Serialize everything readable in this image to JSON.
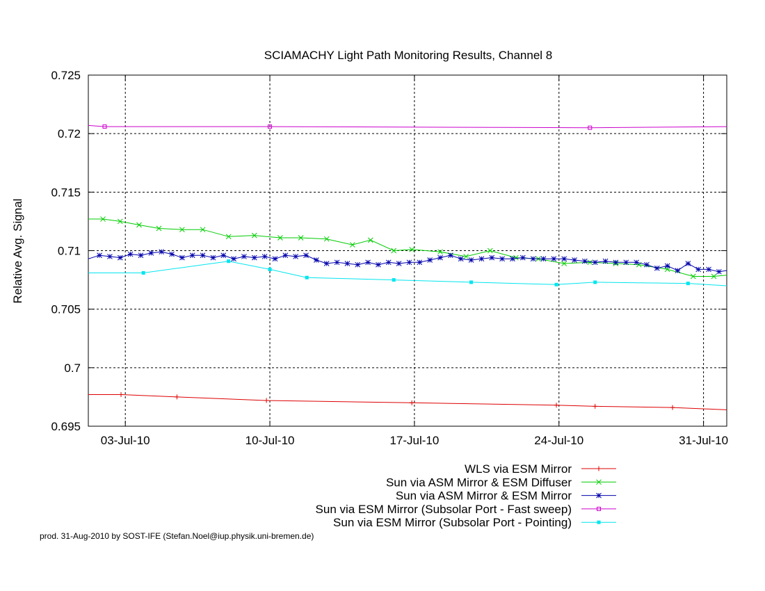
{
  "chart_data": {
    "type": "line",
    "title": "SCIAMACHY Light Path Monitoring Results, Channel 8",
    "xlabel": "",
    "ylabel": "Relative Avg. Signal",
    "x_unit": "date (2010)",
    "xlim": [
      "2010-07-01T05:00",
      "2010-08-01T03:00"
    ],
    "ylim": [
      0.695,
      0.725
    ],
    "yticks": [
      0.695,
      0.7,
      0.705,
      0.71,
      0.715,
      0.72,
      0.725
    ],
    "ytick_labels": [
      "0.695",
      "0.7",
      "0.705",
      "0.71",
      "0.715",
      "0.72",
      "0.725"
    ],
    "xticks": [
      "2010-07-03",
      "2010-07-10",
      "2010-07-17",
      "2010-07-24",
      "2010-07-31"
    ],
    "xtick_labels": [
      "03-Jul-10",
      "10-Jul-10",
      "17-Jul-10",
      "24-Jul-10",
      "31-Jul-10"
    ],
    "grid": true,
    "legend_position": "below plot, right-aligned",
    "series": [
      {
        "name": "WLS via ESM Mirror",
        "color": "#dd0000",
        "marker": "plus",
        "points": [
          [
            "2010-07-01T05:00",
            0.6977
          ],
          [
            "2010-07-02T19:00",
            0.6977
          ],
          [
            "2010-07-05T12:00",
            0.6975
          ],
          [
            "2010-07-09T20:00",
            0.6972
          ],
          [
            "2010-07-16T21:00",
            0.697
          ],
          [
            "2010-07-23T21:00",
            0.6968
          ],
          [
            "2010-07-25T18:00",
            0.6967
          ],
          [
            "2010-07-29T12:00",
            0.6966
          ],
          [
            "2010-08-01T03:00",
            0.6964
          ]
        ]
      },
      {
        "name": "Sun via ASM Mirror & ESM Diffuser",
        "color": "#00cc00",
        "marker": "x",
        "points": [
          [
            "2010-07-01T05:00",
            0.7127
          ],
          [
            "2010-07-01T22:00",
            0.7127
          ],
          [
            "2010-07-02T18:00",
            0.7125
          ],
          [
            "2010-07-03T16:00",
            0.7122
          ],
          [
            "2010-07-04T15:00",
            0.7119
          ],
          [
            "2010-07-05T18:00",
            0.7118
          ],
          [
            "2010-07-06T18:00",
            0.7118
          ],
          [
            "2010-07-08T00:00",
            0.7112
          ],
          [
            "2010-07-09T06:00",
            0.7113
          ],
          [
            "2010-07-10T12:00",
            0.7111
          ],
          [
            "2010-07-11T12:00",
            0.7111
          ],
          [
            "2010-07-12T18:00",
            0.711
          ],
          [
            "2010-07-14T00:00",
            0.7105
          ],
          [
            "2010-07-14T21:00",
            0.7109
          ],
          [
            "2010-07-16T00:00",
            0.71
          ],
          [
            "2010-07-16T21:00",
            0.7101
          ],
          [
            "2010-07-18T06:00",
            0.7099
          ],
          [
            "2010-07-19T12:00",
            0.7095
          ],
          [
            "2010-07-20T16:00",
            0.71
          ],
          [
            "2010-07-21T22:00",
            0.7094
          ],
          [
            "2010-07-23T00:00",
            0.7093
          ],
          [
            "2010-07-24T06:00",
            0.7089
          ],
          [
            "2010-07-25T12:00",
            0.709
          ],
          [
            "2010-07-26T18:00",
            0.7089
          ],
          [
            "2010-07-27T21:00",
            0.7088
          ],
          [
            "2010-07-29T06:00",
            0.7084
          ],
          [
            "2010-07-30T12:00",
            0.7078
          ],
          [
            "2010-07-31T12:00",
            0.7078
          ],
          [
            "2010-08-01T03:00",
            0.7079
          ]
        ]
      },
      {
        "name": "Sun via ASM Mirror & ESM Mirror",
        "color": "#0000aa",
        "marker": "star",
        "points": [
          [
            "2010-07-01T05:00",
            0.7093
          ],
          [
            "2010-07-01T18:00",
            0.7096
          ],
          [
            "2010-07-02T06:00",
            0.7095
          ],
          [
            "2010-07-02T18:00",
            0.7094
          ],
          [
            "2010-07-03T06:00",
            0.7097
          ],
          [
            "2010-07-03T18:00",
            0.7096
          ],
          [
            "2010-07-04T06:00",
            0.7098
          ],
          [
            "2010-07-04T18:00",
            0.7099
          ],
          [
            "2010-07-05T06:00",
            0.7097
          ],
          [
            "2010-07-05T18:00",
            0.7094
          ],
          [
            "2010-07-06T06:00",
            0.7096
          ],
          [
            "2010-07-06T18:00",
            0.7096
          ],
          [
            "2010-07-07T06:00",
            0.7094
          ],
          [
            "2010-07-07T18:00",
            0.7096
          ],
          [
            "2010-07-08T06:00",
            0.7093
          ],
          [
            "2010-07-08T18:00",
            0.7095
          ],
          [
            "2010-07-09T06:00",
            0.7094
          ],
          [
            "2010-07-09T18:00",
            0.7095
          ],
          [
            "2010-07-10T06:00",
            0.7093
          ],
          [
            "2010-07-10T18:00",
            0.7096
          ],
          [
            "2010-07-11T06:00",
            0.7095
          ],
          [
            "2010-07-11T18:00",
            0.7096
          ],
          [
            "2010-07-12T06:00",
            0.7092
          ],
          [
            "2010-07-12T18:00",
            0.7089
          ],
          [
            "2010-07-13T06:00",
            0.709
          ],
          [
            "2010-07-13T18:00",
            0.7089
          ],
          [
            "2010-07-14T06:00",
            0.7088
          ],
          [
            "2010-07-14T18:00",
            0.709
          ],
          [
            "2010-07-15T06:00",
            0.7088
          ],
          [
            "2010-07-15T18:00",
            0.709
          ],
          [
            "2010-07-16T06:00",
            0.7089
          ],
          [
            "2010-07-16T18:00",
            0.709
          ],
          [
            "2010-07-17T06:00",
            0.709
          ],
          [
            "2010-07-17T18:00",
            0.7092
          ],
          [
            "2010-07-18T06:00",
            0.7094
          ],
          [
            "2010-07-18T18:00",
            0.7096
          ],
          [
            "2010-07-19T06:00",
            0.7093
          ],
          [
            "2010-07-19T18:00",
            0.7092
          ],
          [
            "2010-07-20T06:00",
            0.7093
          ],
          [
            "2010-07-20T18:00",
            0.7094
          ],
          [
            "2010-07-21T06:00",
            0.7093
          ],
          [
            "2010-07-21T18:00",
            0.7093
          ],
          [
            "2010-07-22T06:00",
            0.7094
          ],
          [
            "2010-07-22T18:00",
            0.7093
          ],
          [
            "2010-07-23T06:00",
            0.7093
          ],
          [
            "2010-07-23T18:00",
            0.7093
          ],
          [
            "2010-07-24T06:00",
            0.7093
          ],
          [
            "2010-07-24T18:00",
            0.7092
          ],
          [
            "2010-07-25T06:00",
            0.7091
          ],
          [
            "2010-07-25T18:00",
            0.709
          ],
          [
            "2010-07-26T06:00",
            0.7091
          ],
          [
            "2010-07-26T18:00",
            0.709
          ],
          [
            "2010-07-27T06:00",
            0.709
          ],
          [
            "2010-07-27T18:00",
            0.709
          ],
          [
            "2010-07-28T06:00",
            0.7088
          ],
          [
            "2010-07-28T18:00",
            0.7085
          ],
          [
            "2010-07-29T06:00",
            0.7087
          ],
          [
            "2010-07-29T18:00",
            0.7083
          ],
          [
            "2010-07-30T06:00",
            0.7089
          ],
          [
            "2010-07-30T18:00",
            0.7084
          ],
          [
            "2010-07-31T06:00",
            0.7084
          ],
          [
            "2010-07-31T18:00",
            0.7082
          ],
          [
            "2010-08-01T03:00",
            0.7083
          ]
        ]
      },
      {
        "name": "Sun via ESM Mirror (Subsolar Port - Fast sweep)",
        "color": "#cc00cc",
        "marker": "open-square",
        "points": [
          [
            "2010-07-01T05:00",
            0.7207
          ],
          [
            "2010-07-02T00:00",
            0.7206
          ],
          [
            "2010-07-10T00:00",
            0.7206
          ],
          [
            "2010-07-25T12:00",
            0.7205
          ],
          [
            "2010-08-01T03:00",
            0.7206
          ]
        ]
      },
      {
        "name": "Sun via ESM Mirror (Subsolar Port - Pointing)",
        "color": "#00e5ee",
        "marker": "filled-square",
        "points": [
          [
            "2010-07-01T05:00",
            0.7081
          ],
          [
            "2010-07-03T21:00",
            0.7081
          ],
          [
            "2010-07-08T00:00",
            0.7091
          ],
          [
            "2010-07-10T00:00",
            0.7084
          ],
          [
            "2010-07-11T19:00",
            0.7077
          ],
          [
            "2010-07-16T00:00",
            0.7075
          ],
          [
            "2010-07-19T18:00",
            0.7073
          ],
          [
            "2010-07-23T21:00",
            0.7071
          ],
          [
            "2010-07-25T18:00",
            0.7073
          ],
          [
            "2010-07-30T06:00",
            0.7072
          ],
          [
            "2010-08-01T03:00",
            0.707
          ]
        ]
      }
    ]
  },
  "footer": "prod. 31-Aug-2010 by SOST-IFE (Stefan.Noel@iup.physik.uni-bremen.de)"
}
